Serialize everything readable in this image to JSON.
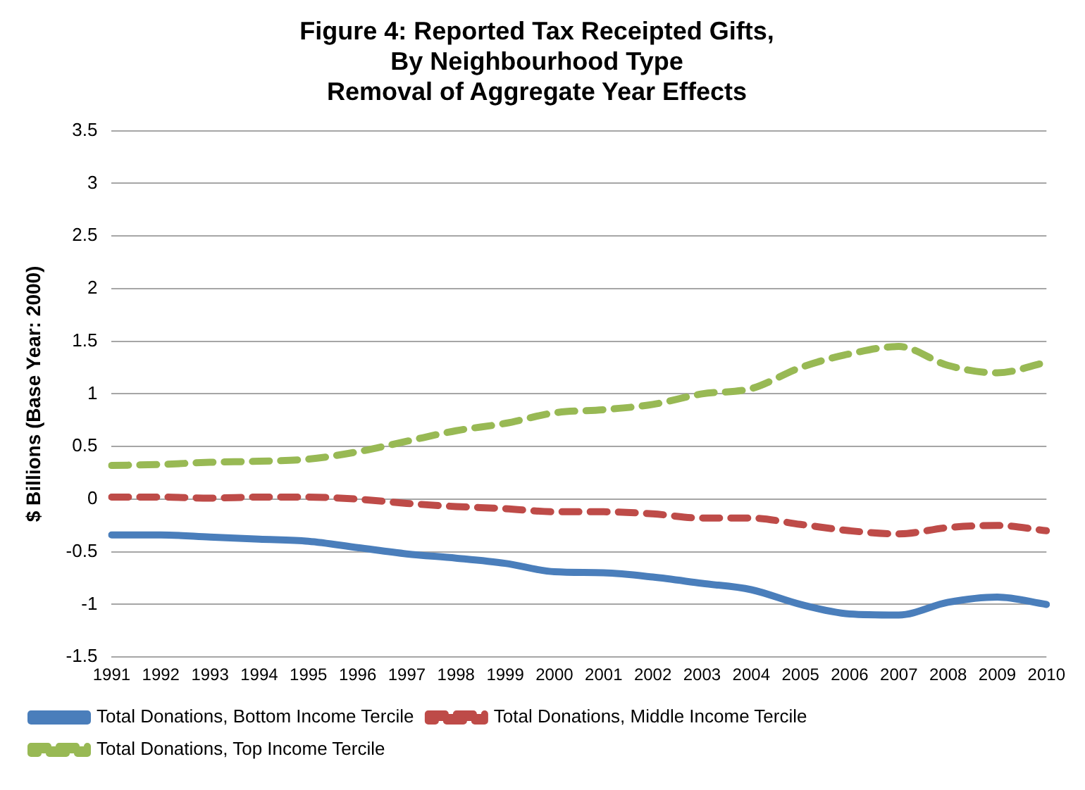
{
  "chart_data": {
    "type": "line",
    "title": "Figure 4: Reported Tax Receipted Gifts,\nBy Neighbourhood Type\nRemoval of Aggregate Year Effects",
    "ylabel": "$ Billions (Base Year: 2000)",
    "categories": [
      "1991",
      "1992",
      "1993",
      "1994",
      "1995",
      "1996",
      "1997",
      "1998",
      "1999",
      "2000",
      "2001",
      "2002",
      "2003",
      "2004",
      "2005",
      "2006",
      "2007",
      "2008",
      "2009",
      "2010"
    ],
    "series": [
      {
        "name": "Total Donations, Bottom Income Tercile",
        "color": "#4a7ebb",
        "line_style": "solid",
        "values": [
          -0.34,
          -0.34,
          -0.36,
          -0.38,
          -0.4,
          -0.46,
          -0.52,
          -0.56,
          -0.61,
          -0.69,
          -0.7,
          -0.74,
          -0.8,
          -0.86,
          -1.0,
          -1.09,
          -1.1,
          -0.98,
          -0.93,
          -1.0
        ]
      },
      {
        "name": "Total Donations, Middle Income Tercile",
        "color": "#be4b48",
        "line_style": "dashed",
        "values": [
          0.02,
          0.02,
          0.01,
          0.02,
          0.02,
          0.0,
          -0.04,
          -0.07,
          -0.09,
          -0.12,
          -0.12,
          -0.14,
          -0.18,
          -0.18,
          -0.24,
          -0.3,
          -0.33,
          -0.27,
          -0.25,
          -0.3
        ]
      },
      {
        "name": "Total Donations, Top Income Tercile",
        "color": "#98b954",
        "line_style": "dashed",
        "values": [
          0.32,
          0.33,
          0.35,
          0.36,
          0.38,
          0.45,
          0.55,
          0.65,
          0.72,
          0.82,
          0.85,
          0.9,
          1.0,
          1.05,
          1.25,
          1.38,
          1.45,
          1.27,
          1.2,
          1.3
        ]
      }
    ],
    "ylim": [
      -1.5,
      3.5
    ],
    "yticks": [
      -1.5,
      -1,
      -0.5,
      0,
      0.5,
      1,
      1.5,
      2,
      2.5,
      3,
      3.5
    ],
    "grid": "y",
    "legend": "bottom",
    "marker": "none"
  }
}
